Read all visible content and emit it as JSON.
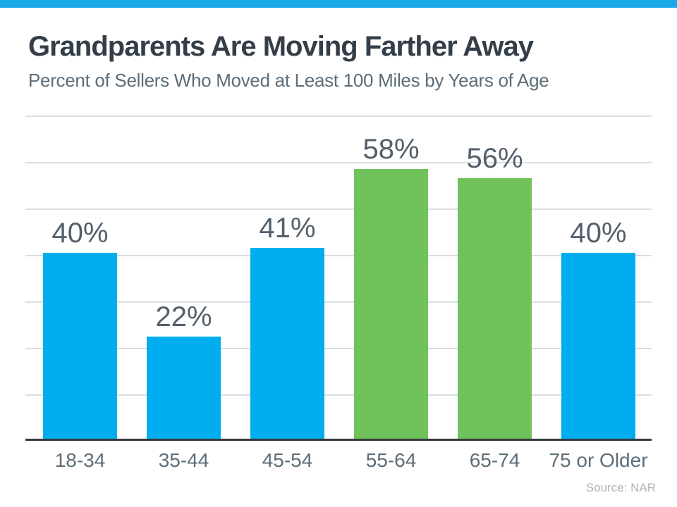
{
  "page": {
    "stripe_color": "#18aae8"
  },
  "header": {
    "title": "Grandparents Are Moving Farther Away",
    "subtitle": "Percent of Sellers Who Moved at Least 100 Miles by Years of Age"
  },
  "chart_data": {
    "type": "bar",
    "title": "Grandparents Are Moving Farther Away",
    "subtitle": "Percent of Sellers Who Moved at Least 100 Miles by Years of Age",
    "categories": [
      "18-34",
      "35-44",
      "45-54",
      "55-64",
      "65-74",
      "75 or Older"
    ],
    "values": [
      40,
      22,
      41,
      58,
      56,
      40
    ],
    "value_labels": [
      "40%",
      "22%",
      "41%",
      "58%",
      "56%",
      "40%"
    ],
    "bar_colors": [
      "#00aeef",
      "#00aeef",
      "#00aeef",
      "#70c25b",
      "#70c25b",
      "#00aeef"
    ],
    "default_color": "#00aeef",
    "highlight_color": "#70c25b",
    "xlabel": "",
    "ylabel": "",
    "ylim": [
      0,
      70
    ],
    "gridline_step": 10,
    "grid": true,
    "legend_position": "none",
    "gridline_color": "#dbdfe1",
    "axis_line_color": "#35393e",
    "value_label_color": "#535f6c",
    "category_label_color": "#5c6d79"
  },
  "footer": {
    "source": "Source: NAR"
  }
}
